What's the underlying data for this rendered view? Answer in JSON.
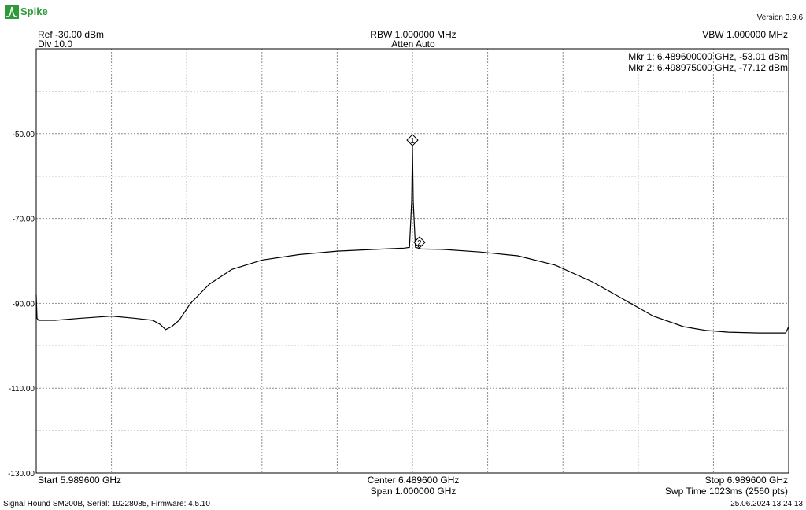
{
  "header": {
    "logo_text": "Spike",
    "version": "Version 3.9.6"
  },
  "settings": {
    "ref": "Ref -30.00 dBm",
    "div": "Div 10.0",
    "rbw": "RBW 1.000000 MHz",
    "atten": "Atten Auto",
    "vbw": "VBW 1.000000 MHz"
  },
  "markers": {
    "mkr1": "Mkr 1: 6.489600000 GHz, -53.01 dBm",
    "mkr2": "Mkr 2: 6.498975000 GHz, -77.12 dBm"
  },
  "footer": {
    "start": "Start 5.989600 GHz",
    "center": "Center 6.489600 GHz",
    "span": "Span 1.000000 GHz",
    "stop": "Stop 6.989600 GHz",
    "sweep": "Swp Time 1023ms (2560 pts)",
    "device": "Signal Hound SM200B, Serial: 19228085, Firmware: 4.5.10",
    "timestamp": "25.06.2024 13:24:13"
  },
  "colors": {
    "trace": "#000000",
    "grid": "#8c8c8c",
    "logo": "#2e9b3a"
  },
  "chart_data": {
    "type": "line",
    "x_unit": "GHz",
    "y_unit": "dBm",
    "xlim": [
      5.9896,
      6.9896
    ],
    "ylim": [
      -130,
      -30
    ],
    "grid": true,
    "y_tick_labels": [
      "-50.00",
      "-70.00",
      "-90.00",
      "-110.00",
      "-130.00"
    ],
    "y_ticks": [
      -50,
      -70,
      -90,
      -110,
      -130
    ],
    "series": [
      {
        "x": [
          5.9896,
          5.9906,
          5.9926,
          6.0146,
          6.0496,
          6.0896,
          6.1196,
          6.1446,
          6.1546,
          6.1616,
          6.1696,
          6.1796,
          6.1946,
          6.2196,
          6.2496,
          6.2896,
          6.3396,
          6.3896,
          6.4396,
          6.4786,
          6.4856,
          6.4886,
          6.4896,
          6.4906,
          6.4936,
          6.4976,
          6.499,
          6.5016,
          6.5296,
          6.5796,
          6.6296,
          6.6796,
          6.7296,
          6.7696,
          6.8096,
          6.8496,
          6.8796,
          6.9096,
          6.9496,
          6.9856,
          6.9896
        ],
        "y": [
          -88.0,
          -93.5,
          -94.0,
          -94.0,
          -93.5,
          -93.0,
          -93.5,
          -94.0,
          -95.0,
          -96.2,
          -95.5,
          -94.0,
          -90.0,
          -85.5,
          -82.0,
          -79.8,
          -78.5,
          -77.7,
          -77.3,
          -77.0,
          -76.8,
          -66.0,
          -53.01,
          -66.0,
          -76.8,
          -77.0,
          -77.12,
          -77.2,
          -77.3,
          -77.9,
          -78.8,
          -81.0,
          -85.0,
          -89.0,
          -93.0,
          -95.5,
          -96.4,
          -96.8,
          -97.0,
          -97.0,
          -95.5
        ]
      }
    ],
    "markers": [
      {
        "label": "1",
        "x": 6.4896,
        "y": -53.01
      },
      {
        "label": "2",
        "x": 6.498975,
        "y": -77.12
      }
    ]
  }
}
